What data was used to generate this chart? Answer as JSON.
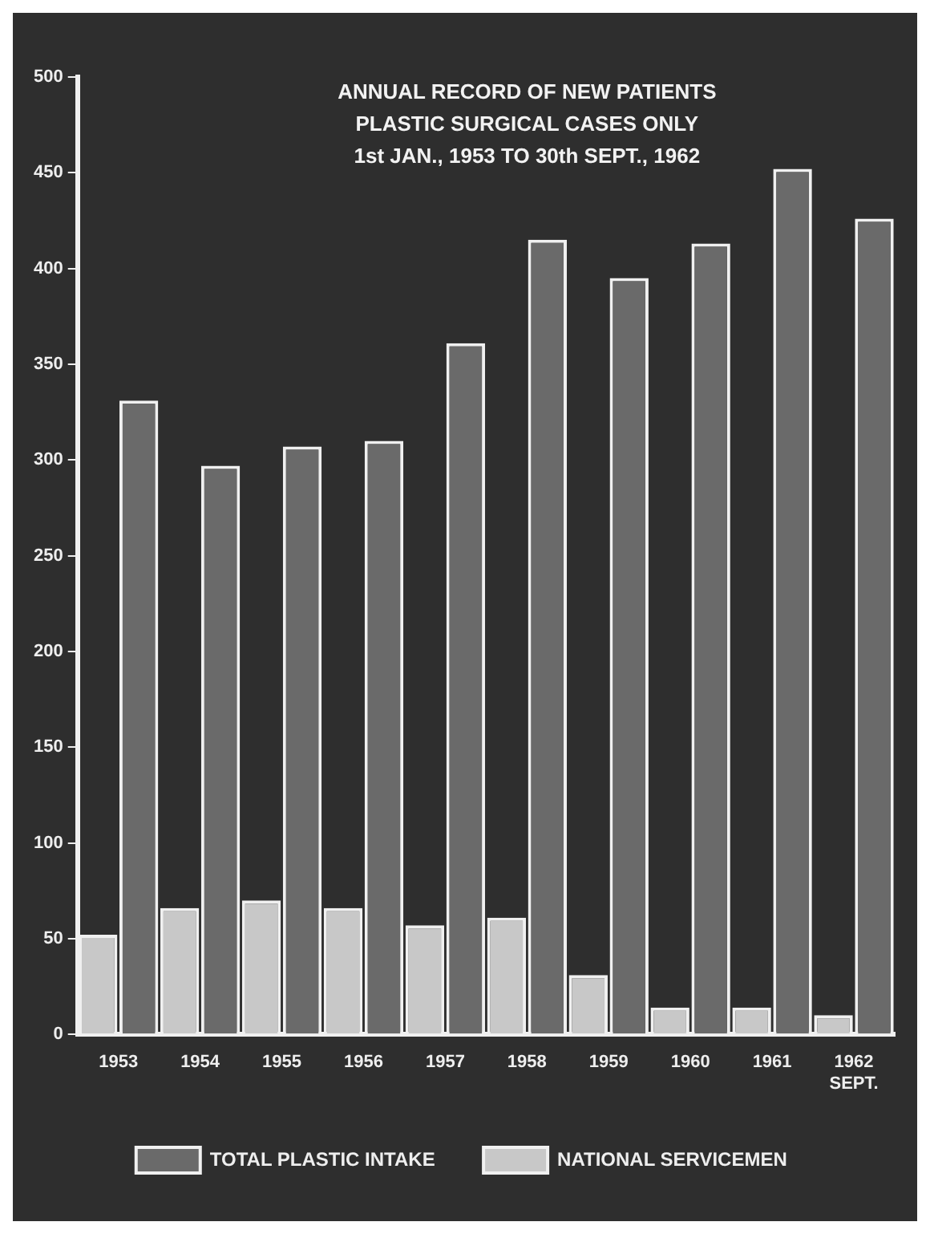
{
  "chart_data": {
    "type": "bar",
    "title": [
      "ANNUAL RECORD OF NEW PATIENTS",
      "PLASTIC SURGICAL CASES ONLY",
      "1st JAN., 1953 TO 30th SEPT., 1962"
    ],
    "categories": [
      "1953",
      "1954",
      "1955",
      "1956",
      "1957",
      "1958",
      "1959",
      "1960",
      "1961",
      "1962 SEPT."
    ],
    "series": [
      {
        "name": "NATIONAL SERVICEMEN",
        "color": "#c8c8c8",
        "values": [
          52,
          66,
          70,
          66,
          57,
          61,
          31,
          14,
          14,
          10
        ]
      },
      {
        "name": "TOTAL PLASTIC INTAKE",
        "color": "#6a6a6a",
        "values": [
          331,
          297,
          307,
          310,
          361,
          415,
          395,
          413,
          452,
          426
        ]
      }
    ],
    "ylim": [
      0,
      500
    ],
    "yticks": [
      0,
      50,
      100,
      150,
      200,
      250,
      300,
      350,
      400,
      450,
      500
    ],
    "grid": false,
    "legend": "bottom"
  }
}
